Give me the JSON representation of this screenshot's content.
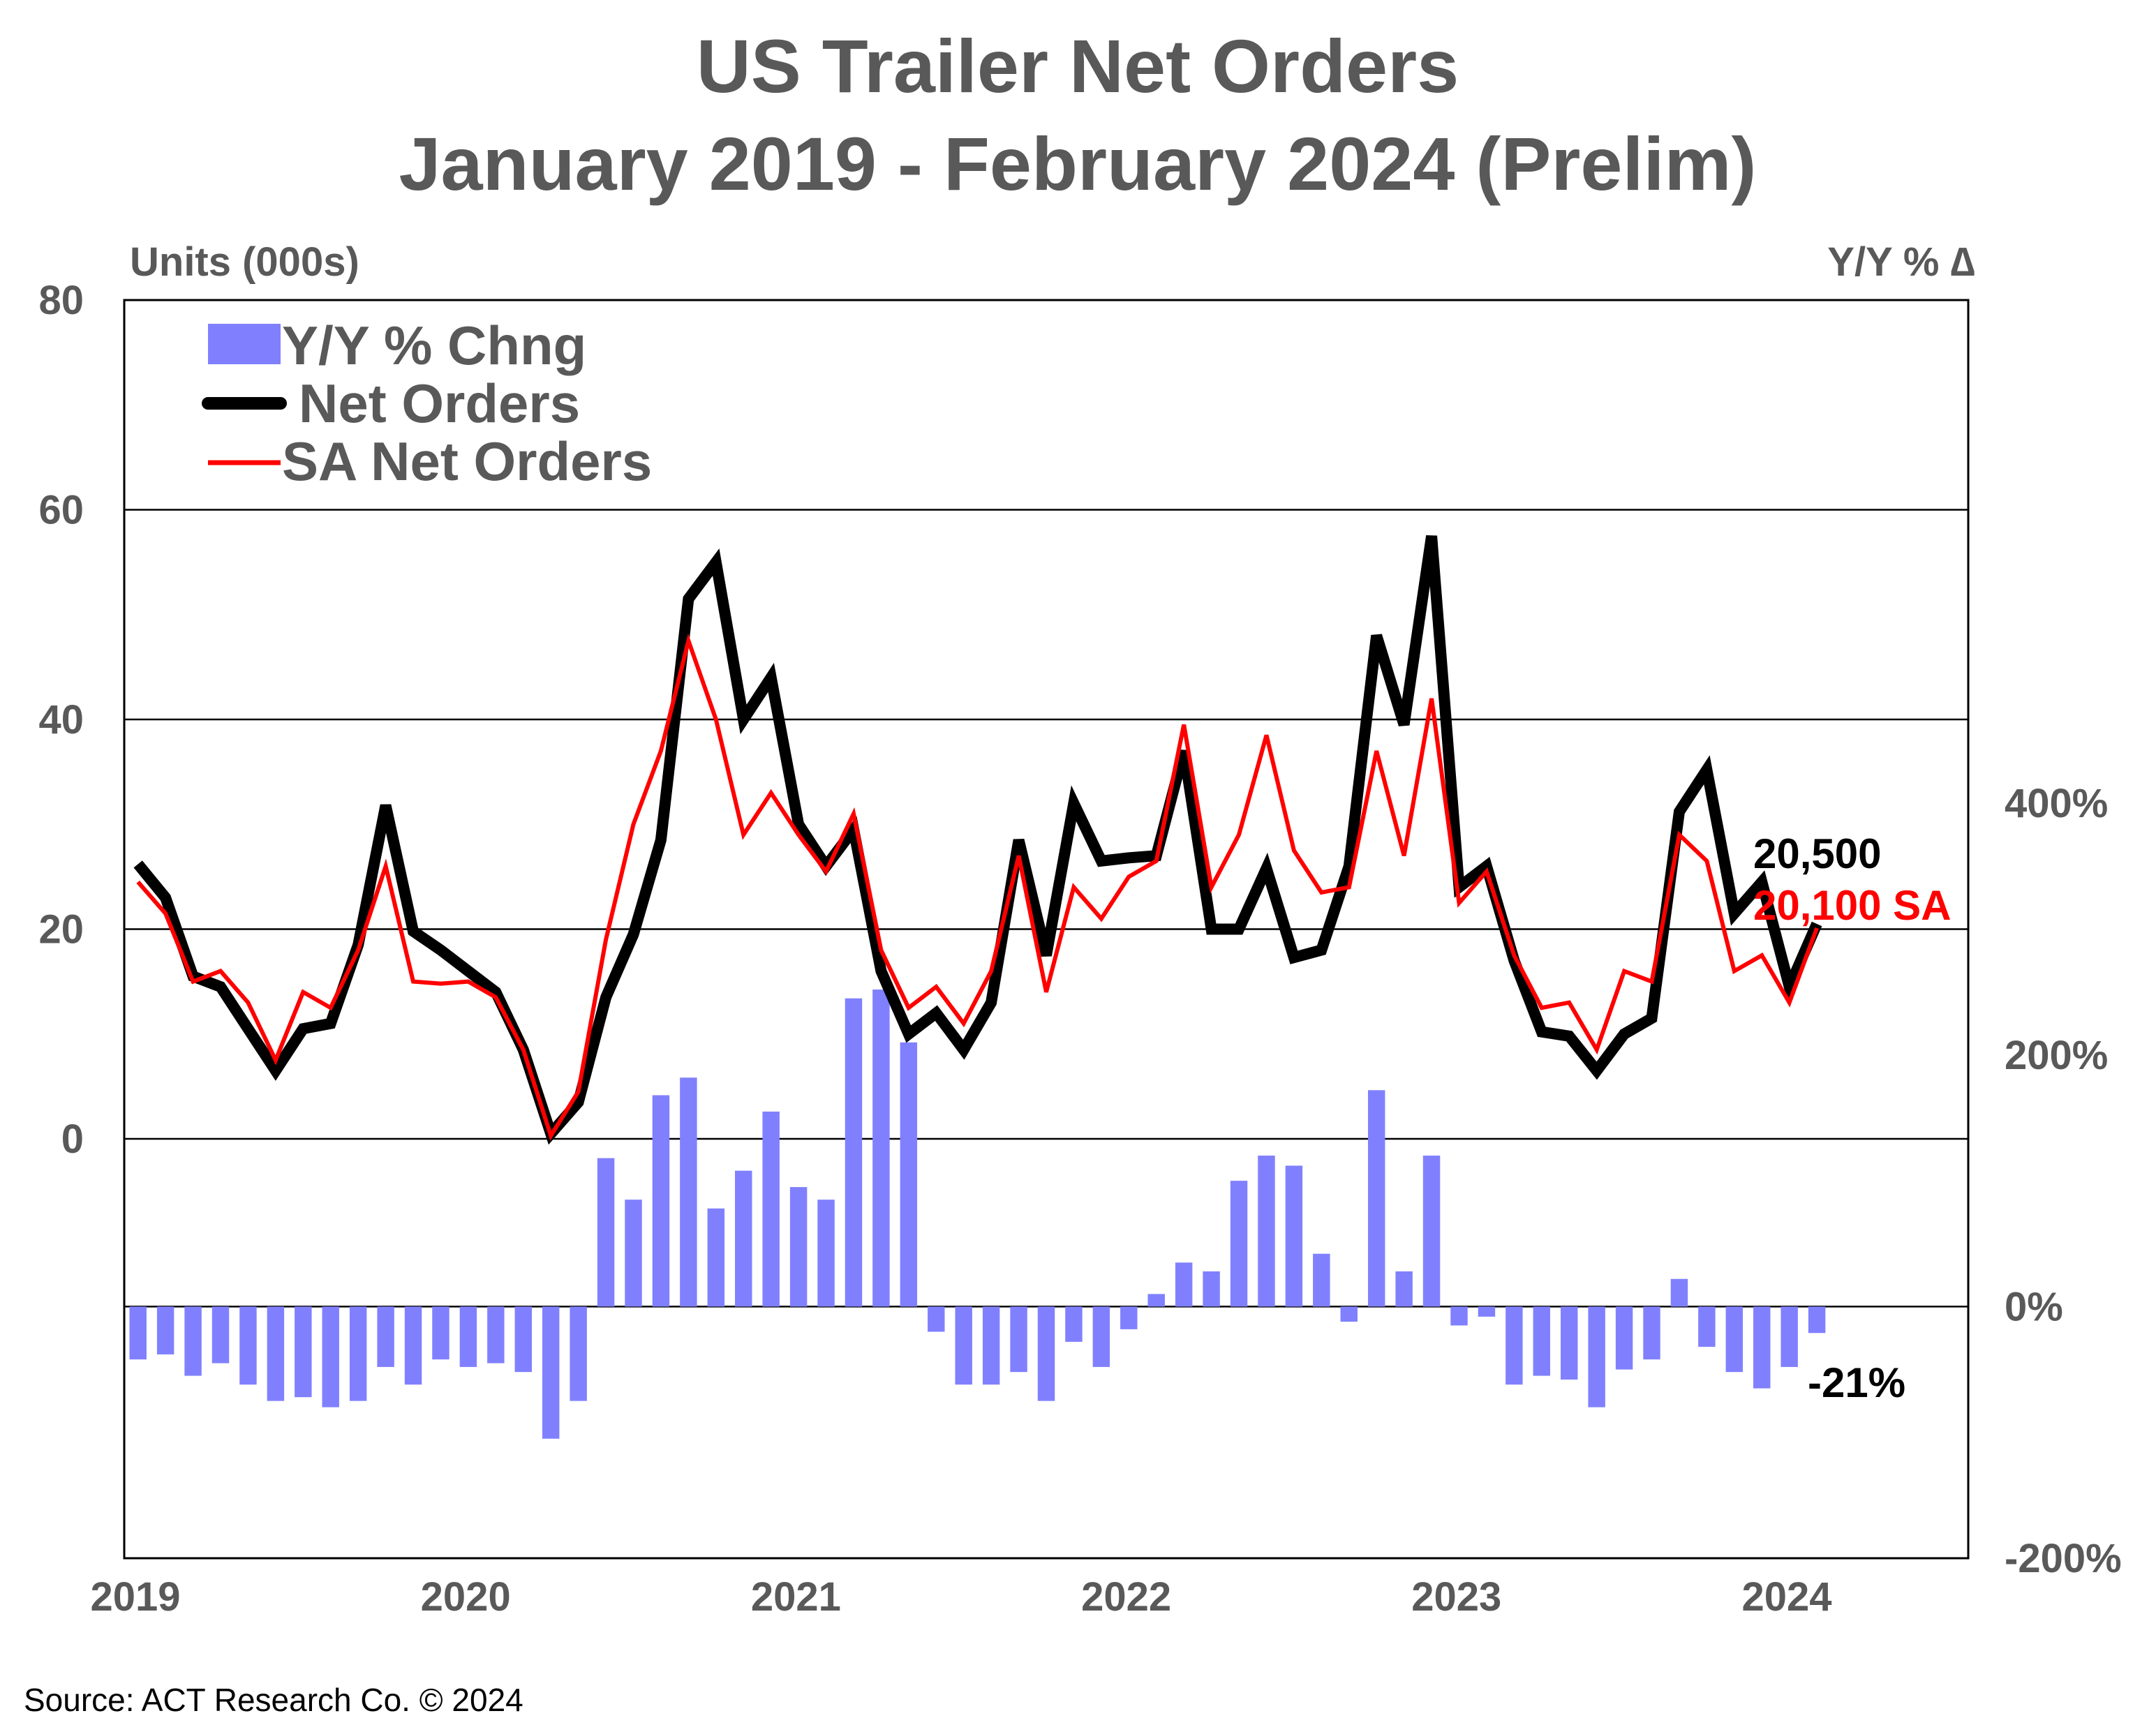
{
  "chart_data": {
    "type": "bar+line",
    "title_line1": "US Trailer Net Orders",
    "title_line2": "January 2019 - February 2024 (Prelim)",
    "ylabel_left": "Units (000s)",
    "ylabel_right": "Y/Y % ∆",
    "left_axis": {
      "range": [
        -40,
        80
      ],
      "ticks": [
        0,
        20,
        40,
        60,
        80
      ]
    },
    "right_axis": {
      "range": [
        -200,
        800
      ],
      "ticks": [
        -200,
        0,
        200,
        400
      ],
      "tick_labels": [
        "-200%",
        "0%",
        "200%",
        "400%"
      ]
    },
    "x_axis": {
      "start": "2019-01",
      "end": "2024-08",
      "tick_labels": [
        "2019",
        "2020",
        "2021",
        "2022",
        "2023",
        "2024"
      ]
    },
    "grid": true,
    "legend": {
      "position": "top-left",
      "items": [
        {
          "label": "Y/Y % Chng",
          "type": "bar",
          "color": "#8080ff"
        },
        {
          "label": "Net Orders",
          "type": "line",
          "color": "#000000"
        },
        {
          "label": "SA Net Orders",
          "type": "line",
          "color": "#ff0000"
        }
      ]
    },
    "months": [
      "2019-01",
      "2019-02",
      "2019-03",
      "2019-04",
      "2019-05",
      "2019-06",
      "2019-07",
      "2019-08",
      "2019-09",
      "2019-10",
      "2019-11",
      "2019-12",
      "2020-01",
      "2020-02",
      "2020-03",
      "2020-04",
      "2020-05",
      "2020-06",
      "2020-07",
      "2020-08",
      "2020-09",
      "2020-10",
      "2020-11",
      "2020-12",
      "2021-01",
      "2021-02",
      "2021-03",
      "2021-04",
      "2021-05",
      "2021-06",
      "2021-07",
      "2021-08",
      "2021-09",
      "2021-10",
      "2021-11",
      "2021-12",
      "2022-01",
      "2022-02",
      "2022-03",
      "2022-04",
      "2022-05",
      "2022-06",
      "2022-07",
      "2022-08",
      "2022-09",
      "2022-10",
      "2022-11",
      "2022-12",
      "2023-01",
      "2023-02",
      "2023-03",
      "2023-04",
      "2023-05",
      "2023-06",
      "2023-07",
      "2023-08",
      "2023-09",
      "2023-10",
      "2023-11",
      "2023-12",
      "2024-01",
      "2024-02"
    ],
    "series": [
      {
        "name": "Net Orders",
        "axis": "left",
        "color": "#000000",
        "values": [
          26.2,
          23.0,
          15.5,
          14.5,
          10.5,
          6.5,
          10.5,
          11.0,
          18.5,
          31.8,
          19.8,
          18.0,
          16.0,
          14.0,
          8.5,
          0.5,
          3.5,
          13.5,
          19.5,
          28.5,
          51.5,
          55.0,
          40.0,
          44.0,
          30.0,
          26.0,
          29.5,
          16.0,
          10.0,
          12.0,
          8.5,
          13.0,
          28.5,
          17.5,
          32.0,
          26.5,
          26.8,
          27.0,
          37.0,
          20.0,
          20.0,
          25.8,
          17.3,
          18.0,
          26.0,
          48.0,
          39.5,
          57.5,
          24.0,
          26.0,
          17.0,
          10.2,
          9.8,
          6.5,
          10.0,
          11.5,
          31.2,
          35.2,
          21.5,
          24.5,
          14.5,
          20.5
        ]
      },
      {
        "name": "SA Net Orders",
        "axis": "left",
        "color": "#ff0000",
        "values": [
          24.5,
          21.5,
          15.0,
          16.0,
          13.0,
          7.5,
          14.0,
          12.5,
          18.0,
          26.0,
          15.0,
          14.8,
          15.0,
          13.5,
          8.5,
          0.3,
          4.5,
          19.0,
          30.0,
          37.0,
          47.5,
          40.0,
          29.0,
          33.0,
          29.0,
          25.5,
          31.0,
          18.0,
          12.5,
          14.5,
          11.0,
          16.0,
          27.0,
          14.0,
          24.0,
          21.0,
          25.0,
          26.5,
          39.5,
          24.0,
          29.0,
          38.5,
          27.5,
          23.5,
          24.0,
          37.0,
          27.0,
          42.0,
          22.5,
          25.5,
          17.5,
          12.5,
          13.0,
          8.5,
          16.0,
          15.0,
          29.0,
          26.5,
          16.0,
          17.5,
          13.0,
          20.1
        ]
      },
      {
        "name": "Y/Y % Chng",
        "axis": "right",
        "type": "bar",
        "color": "#8080ff",
        "values": [
          -42,
          -38,
          -55,
          -45,
          -62,
          -75,
          -72,
          -80,
          -75,
          -48,
          -62,
          -42,
          -48,
          -45,
          -52,
          -105,
          -75,
          118,
          85,
          168,
          182,
          78,
          108,
          155,
          95,
          85,
          245,
          252,
          210,
          -20,
          -62,
          -62,
          -52,
          -75,
          -28,
          -48,
          -18,
          10,
          35,
          28,
          100,
          120,
          112,
          42,
          -12,
          172,
          28,
          120,
          -15,
          -8,
          -62,
          -55,
          -58,
          -80,
          -50,
          -42,
          22,
          -32,
          -52,
          -65,
          -48,
          -21
        ]
      }
    ],
    "annotations": [
      {
        "text": "20,500",
        "color": "#000000"
      },
      {
        "text": "20,100 SA",
        "color": "#ff0000"
      },
      {
        "text": "-21%",
        "color": "#000000"
      }
    ]
  },
  "source": "Source: ACT Research Co. © 2024"
}
